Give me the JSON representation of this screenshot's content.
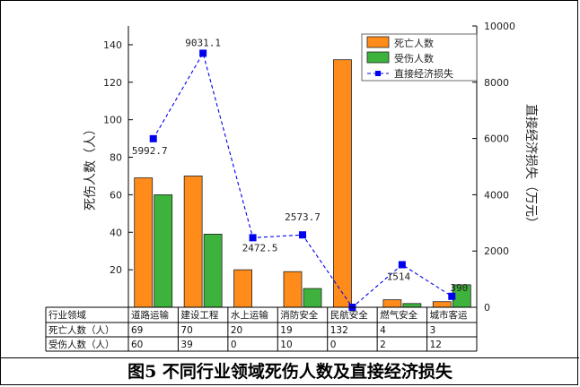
{
  "chart_data": {
    "type": "bar",
    "categories": [
      "道路运输",
      "建设工程",
      "水上运输",
      "消防安全",
      "民航安全",
      "燃气安全",
      "城市客运"
    ],
    "series": [
      {
        "name": "死亡人数",
        "kind": "bar",
        "axis": "left",
        "color": "#FF8C1A",
        "values": [
          69,
          70,
          20,
          19,
          132,
          4,
          3
        ]
      },
      {
        "name": "受伤人数",
        "kind": "bar",
        "axis": "left",
        "color": "#3DB23D",
        "values": [
          60,
          39,
          0,
          10,
          0,
          2,
          12
        ]
      },
      {
        "name": "直接经济损失",
        "kind": "line",
        "axis": "right",
        "color": "#0000EE",
        "values": [
          5992.7,
          9031.1,
          2472.5,
          2573.7,
          0,
          1514,
          390
        ]
      }
    ],
    "data_labels": [
      {
        "series": 2,
        "index": 0,
        "text": "5992.7"
      },
      {
        "series": 2,
        "index": 1,
        "text": "9031.1"
      },
      {
        "series": 2,
        "index": 2,
        "text": "2472.5"
      },
      {
        "series": 2,
        "index": 3,
        "text": "2573.7"
      },
      {
        "series": 2,
        "index": 5,
        "text": "1514"
      },
      {
        "series": 2,
        "index": 6,
        "text": "390"
      }
    ],
    "ylabel": "死伤人数（人）",
    "y2label": "直接经济损失（万元）",
    "ylim": [
      0,
      150
    ],
    "yticks": [
      20,
      40,
      60,
      80,
      100,
      120,
      140
    ],
    "y2lim": [
      0,
      10000
    ],
    "y2ticks": [
      0,
      2000,
      4000,
      6000,
      8000,
      10000
    ],
    "legend_position": "top-right",
    "grid": false,
    "table": {
      "header": "行业领域",
      "row_labels": [
        "死亡人数（人）",
        "受伤人数（人）"
      ]
    }
  },
  "caption": "图5 不同行业领域死伤人数及直接经济损失"
}
